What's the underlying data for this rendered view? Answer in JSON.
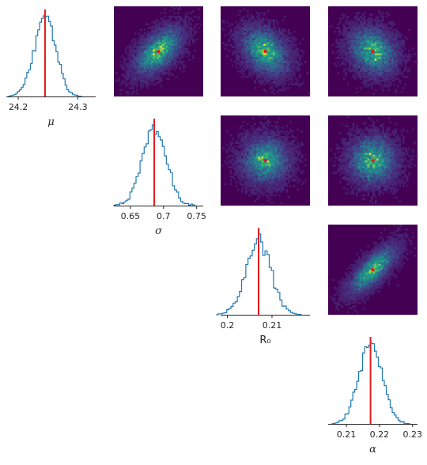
{
  "chart_data": {
    "type": "corner",
    "parameters": [
      "μ",
      "σ",
      "R₀",
      "α"
    ],
    "truth_color": "#e41a1c",
    "hist_color": "#1f77b4",
    "density_colormap": "viridis",
    "density_background": "#440154",
    "diagonal": [
      {
        "name": "μ",
        "xlabel": "μ",
        "center": 24.245,
        "std": 0.018,
        "truth": 24.245,
        "xlim": [
          24.18,
          24.33
        ],
        "ticks": [
          24.2,
          24.3
        ],
        "tick_labels": [
          "24.2",
          "24.3"
        ]
      },
      {
        "name": "σ",
        "xlabel": "σ",
        "center": 0.686,
        "std": 0.018,
        "truth": 0.686,
        "xlim": [
          0.625,
          0.76
        ],
        "ticks": [
          0.65,
          0.7,
          0.75
        ],
        "tick_labels": [
          "0.65",
          "0.7",
          "0.75"
        ]
      },
      {
        "name": "R₀",
        "xlabel": "R₀",
        "center": 0.207,
        "std": 0.0028,
        "truth": 0.207,
        "xlim": [
          0.1985,
          0.2185
        ],
        "ticks": [
          0.2,
          0.21
        ],
        "tick_labels": [
          "0.2",
          "0.21"
        ]
      },
      {
        "name": "α",
        "xlabel": "α",
        "center": 0.2173,
        "std": 0.0035,
        "truth": 0.2173,
        "xlim": [
          0.2045,
          0.2315
        ],
        "ticks": [
          0.21,
          0.22,
          0.23
        ],
        "tick_labels": [
          "0.21",
          "0.22",
          "0.23"
        ]
      }
    ],
    "pair_panels": [
      {
        "x": "σ",
        "y": "μ",
        "correlation": 0.55
      },
      {
        "x": "R₀",
        "y": "μ",
        "correlation": -0.35
      },
      {
        "x": "α",
        "y": "μ",
        "correlation": -0.2
      },
      {
        "x": "R₀",
        "y": "σ",
        "correlation": 0.0
      },
      {
        "x": "α",
        "y": "σ",
        "correlation": 0.0
      },
      {
        "x": "α",
        "y": "R₀",
        "correlation": 0.75
      }
    ]
  }
}
